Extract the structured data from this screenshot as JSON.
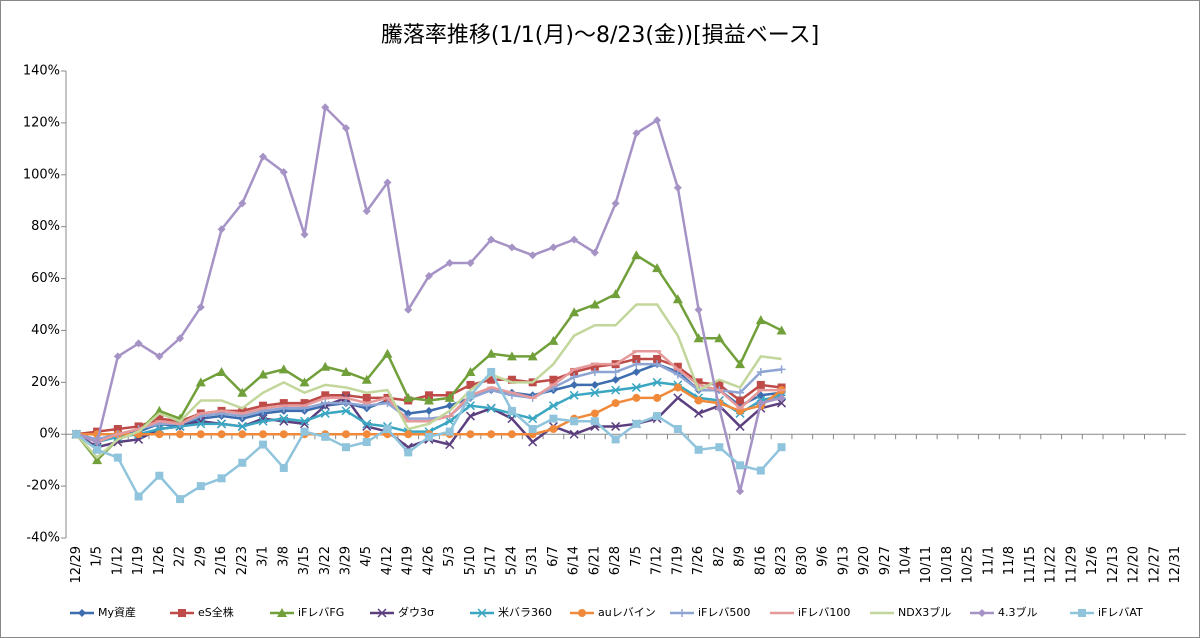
{
  "chart_data": {
    "type": "line",
    "title": "騰落率推移(1/1(月)～8/23(金))[損益ベース]",
    "categories": [
      "12/29",
      "1/5",
      "1/12",
      "1/19",
      "1/26",
      "2/2",
      "2/9",
      "2/16",
      "2/23",
      "3/1",
      "3/8",
      "3/15",
      "3/22",
      "3/29",
      "4/5",
      "4/12",
      "4/19",
      "4/26",
      "5/3",
      "5/10",
      "5/17",
      "5/24",
      "5/31",
      "6/7",
      "6/14",
      "6/21",
      "6/28",
      "7/5",
      "7/12",
      "7/19",
      "7/26",
      "8/2",
      "8/9",
      "8/16",
      "8/23",
      "8/30",
      "9/6",
      "9/13",
      "9/20",
      "9/27",
      "10/4",
      "10/11",
      "10/18",
      "10/25",
      "11/1",
      "11/8",
      "11/15",
      "11/22",
      "11/29",
      "12/6",
      "12/13",
      "12/20",
      "12/27",
      "12/31"
    ],
    "ylim": [
      -40,
      140
    ],
    "yticks": [
      {
        "value": -40,
        "label": "-40%"
      },
      {
        "value": -20,
        "label": "-20%"
      },
      {
        "value": 0,
        "label": "0%"
      },
      {
        "value": 20,
        "label": "20%"
      },
      {
        "value": 40,
        "label": "40%"
      },
      {
        "value": 60,
        "label": "60%"
      },
      {
        "value": 80,
        "label": "80%"
      },
      {
        "value": 100,
        "label": "100%"
      },
      {
        "value": 120,
        "label": "120%"
      },
      {
        "value": 140,
        "label": "140%"
      }
    ],
    "grid": false,
    "legend": "bottom",
    "series": [
      {
        "name": "My資産",
        "color": "#3d6daf",
        "marker": "diamond",
        "values": [
          0,
          -2,
          0,
          1,
          4,
          3,
          6,
          7,
          6,
          8,
          9,
          9,
          11,
          12,
          10,
          13,
          8,
          9,
          11,
          14,
          17,
          16,
          15,
          17,
          19,
          19,
          21,
          24,
          27,
          24,
          17,
          17,
          11,
          15,
          16,
          null,
          null,
          null,
          null,
          null,
          null,
          null,
          null,
          null,
          null,
          null,
          null,
          null,
          null,
          null,
          null,
          null,
          null,
          null
        ]
      },
      {
        "name": "eS全株",
        "color": "#be4b48",
        "marker": "square",
        "values": [
          0,
          1,
          2,
          3,
          6,
          5,
          8,
          9,
          9,
          11,
          12,
          12,
          15,
          15,
          14,
          14,
          13,
          15,
          15,
          19,
          21,
          21,
          20,
          21,
          24,
          26,
          27,
          29,
          29,
          26,
          20,
          19,
          13,
          19,
          18,
          null,
          null,
          null,
          null,
          null,
          null,
          null,
          null,
          null,
          null,
          null,
          null,
          null,
          null,
          null,
          null,
          null,
          null,
          null
        ]
      },
      {
        "name": "iFレバFG",
        "color": "#71a03b",
        "marker": "triangle",
        "values": [
          0,
          -10,
          -2,
          1,
          9,
          6,
          20,
          24,
          16,
          23,
          25,
          20,
          26,
          24,
          21,
          31,
          14,
          13,
          14,
          24,
          31,
          30,
          30,
          36,
          47,
          50,
          54,
          69,
          64,
          52,
          37,
          37,
          27,
          44,
          40,
          null,
          null,
          null,
          null,
          null,
          null,
          null,
          null,
          null,
          null,
          null,
          null,
          null,
          null,
          null,
          null,
          null,
          null,
          null
        ]
      },
      {
        "name": "ダウ3σ",
        "color": "#5c3f7f",
        "marker": "x",
        "values": [
          0,
          -5,
          -3,
          -2,
          2,
          3,
          5,
          4,
          3,
          6,
          5,
          4,
          11,
          14,
          3,
          1,
          -5,
          -2,
          -4,
          7,
          10,
          6,
          -3,
          3,
          0,
          3,
          3,
          4,
          6,
          14,
          8,
          11,
          3,
          10,
          12,
          null,
          null,
          null,
          null,
          null,
          null,
          null,
          null,
          null,
          null,
          null,
          null,
          null,
          null,
          null,
          null,
          null,
          null,
          null
        ]
      },
      {
        "name": "米バラ360",
        "color": "#3aa6c2",
        "marker": "star",
        "values": [
          0,
          -3,
          -1,
          0,
          2,
          3,
          4,
          4,
          3,
          5,
          6,
          5,
          8,
          9,
          4,
          3,
          1,
          1,
          5,
          11,
          10,
          8,
          6,
          11,
          15,
          16,
          17,
          18,
          20,
          19,
          14,
          13,
          8,
          13,
          15,
          null,
          null,
          null,
          null,
          null,
          null,
          null,
          null,
          null,
          null,
          null,
          null,
          null,
          null,
          null,
          null,
          null,
          null,
          null
        ]
      },
      {
        "name": "auレバイン",
        "color": "#f08a3a",
        "marker": "circle",
        "values": [
          0,
          0,
          0,
          0,
          0,
          0,
          0,
          0,
          0,
          0,
          0,
          0,
          0,
          0,
          0,
          0,
          0,
          0,
          0,
          0,
          0,
          0,
          0,
          2,
          6,
          8,
          12,
          14,
          14,
          18,
          13,
          12,
          9,
          11,
          17,
          null,
          null,
          null,
          null,
          null,
          null,
          null,
          null,
          null,
          null,
          null,
          null,
          null,
          null,
          null,
          null,
          null,
          null,
          null
        ]
      },
      {
        "name": "iFレバ500",
        "color": "#8ea5d4",
        "marker": "plus",
        "values": [
          0,
          -2,
          0,
          2,
          4,
          4,
          7,
          8,
          7,
          9,
          10,
          10,
          12,
          12,
          11,
          12,
          6,
          6,
          7,
          14,
          17,
          15,
          14,
          18,
          22,
          24,
          24,
          27,
          27,
          23,
          17,
          17,
          16,
          24,
          25,
          null,
          null,
          null,
          null,
          null,
          null,
          null,
          null,
          null,
          null,
          null,
          null,
          null,
          null,
          null,
          null,
          null,
          null,
          null
        ]
      },
      {
        "name": "iFレバ100",
        "color": "#e6999a",
        "marker": "dash",
        "values": [
          0,
          -3,
          0,
          2,
          5,
          4,
          8,
          9,
          8,
          10,
          11,
          11,
          14,
          14,
          12,
          14,
          5,
          5,
          7,
          15,
          18,
          16,
          14,
          19,
          25,
          27,
          27,
          32,
          32,
          25,
          19,
          17,
          10,
          17,
          17,
          null,
          null,
          null,
          null,
          null,
          null,
          null,
          null,
          null,
          null,
          null,
          null,
          null,
          null,
          null,
          null,
          null,
          null,
          null
        ]
      },
      {
        "name": "NDX3ブル",
        "color": "#c3d69b",
        "marker": "none",
        "values": [
          0,
          -9,
          -2,
          1,
          8,
          5,
          13,
          13,
          10,
          16,
          20,
          16,
          19,
          18,
          16,
          17,
          2,
          4,
          9,
          17,
          23,
          20,
          20,
          27,
          38,
          42,
          42,
          50,
          50,
          38,
          17,
          21,
          18,
          30,
          29,
          null,
          null,
          null,
          null,
          null,
          null,
          null,
          null,
          null,
          null,
          null,
          null,
          null,
          null,
          null,
          null,
          null,
          null,
          null
        ]
      },
      {
        "name": "4.3ブル",
        "color": "#a593c6",
        "marker": "diamond",
        "values": [
          0,
          -3,
          30,
          35,
          30,
          37,
          49,
          79,
          89,
          107,
          101,
          77,
          126,
          118,
          86,
          97,
          48,
          61,
          66,
          66,
          75,
          72,
          69,
          72,
          75,
          70,
          89,
          116,
          121,
          95,
          48,
          10,
          -22,
          12,
          14,
          null,
          null,
          null,
          null,
          null,
          null,
          null,
          null,
          null,
          null,
          null,
          null,
          null,
          null,
          null,
          null,
          null,
          null,
          null
        ]
      },
      {
        "name": "iFレバAT",
        "color": "#8fc4dc",
        "marker": "square",
        "values": [
          0,
          -6,
          -9,
          -24,
          -16,
          -25,
          -20,
          -17,
          -11,
          -4,
          -13,
          1,
          -1,
          -5,
          -3,
          2,
          -7,
          -1,
          1,
          15,
          24,
          9,
          2,
          6,
          5,
          5,
          -2,
          4,
          7,
          2,
          -6,
          -5,
          -12,
          -14,
          -5,
          null,
          null,
          null,
          null,
          null,
          null,
          null,
          null,
          null,
          null,
          null,
          null,
          null,
          null,
          null,
          null,
          null,
          null,
          null
        ]
      }
    ]
  }
}
